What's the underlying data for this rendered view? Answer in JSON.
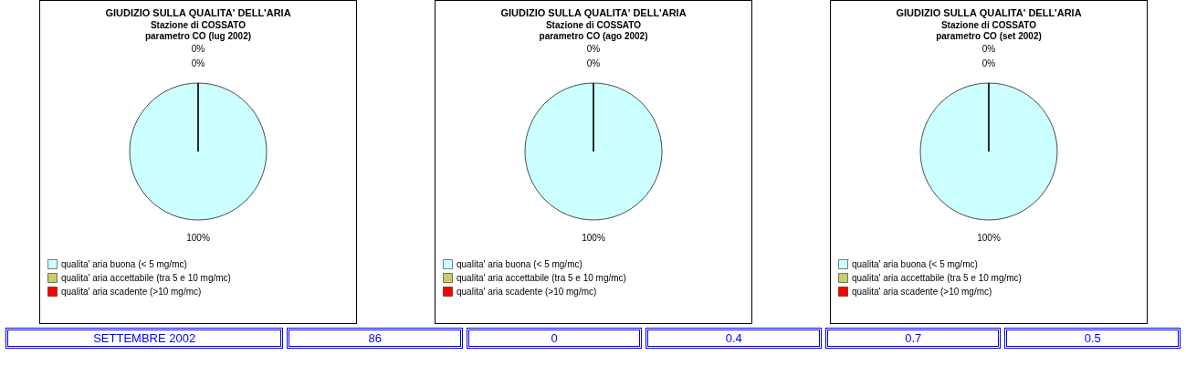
{
  "chart_data": [
    {
      "type": "pie",
      "title": "GIUDIZIO SULLA QUALITA' DELL'ARIA",
      "subtitle": "Stazione di COSSATO\nparametro CO (lug 2002)",
      "categories": [
        "qualita' aria buona (< 5 mg/mc)",
        "qualita' aria accettabile (tra 5 e 10 mg/mc)",
        "qualita' aria scadente (>10 mg/mc)"
      ],
      "values": [
        100,
        0,
        0
      ],
      "value_labels": [
        "100%",
        "0%",
        "0%"
      ],
      "colors": [
        "#ccffff",
        "#cccc66",
        "#ff0000"
      ],
      "legend": "bottom"
    },
    {
      "type": "pie",
      "title": "GIUDIZIO SULLA QUALITA' DELL'ARIA",
      "subtitle": "Stazione di COSSATO\nparametro CO (ago 2002)",
      "categories": [
        "qualita' aria buona (< 5 mg/mc)",
        "qualita' aria accettabile (tra 5 e 10 mg/mc)",
        "qualita' aria scadente (>10 mg/mc)"
      ],
      "values": [
        100,
        0,
        0
      ],
      "value_labels": [
        "100%",
        "0%",
        "0%"
      ],
      "colors": [
        "#ccffff",
        "#cccc66",
        "#ff0000"
      ],
      "legend": "bottom"
    },
    {
      "type": "pie",
      "title": "GIUDIZIO SULLA QUALITA' DELL'ARIA",
      "subtitle": "Stazione di COSSATO\nparametro CO (set 2002)",
      "categories": [
        "qualita' aria buona (< 5 mg/mc)",
        "qualita' aria accettabile (tra 5 e 10 mg/mc)",
        "qualita' aria scadente (>10 mg/mc)"
      ],
      "values": [
        100,
        0,
        0
      ],
      "value_labels": [
        "100%",
        "0%",
        "0%"
      ],
      "colors": [
        "#ccffff",
        "#cccc66",
        "#ff0000"
      ],
      "legend": "bottom"
    },
    {
      "type": "other",
      "annotations": [
        "SETTEMBRE 2002",
        "86",
        "0",
        "0.4",
        "0.7",
        "0.5"
      ]
    }
  ]
}
